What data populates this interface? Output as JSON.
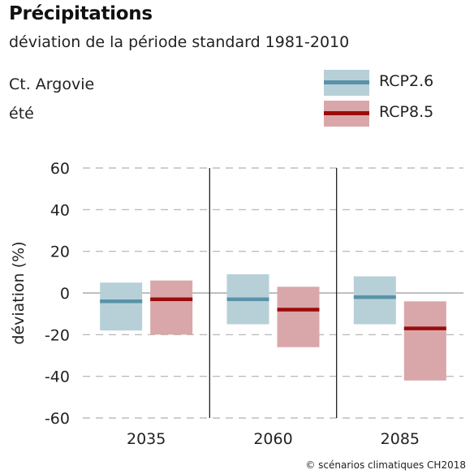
{
  "header": {
    "title": "Précipitations",
    "subtitle": "déviation de la période standard 1981-2010",
    "region": "Ct. Argovie",
    "season": "été"
  },
  "legend": {
    "items": [
      {
        "label": "RCP2.6"
      },
      {
        "label": "RCP8.5"
      }
    ]
  },
  "colors": {
    "rcp26_band": "#b7d0d8",
    "rcp26_line": "#5a93a8",
    "rcp85_band": "#d9a7a9",
    "rcp85_line": "#9b0b0b",
    "grid": "#b0b0b0",
    "divider": "#222222",
    "zero": "#9a9a9a"
  },
  "chart_data": {
    "type": "bar",
    "title": "Précipitations",
    "subtitle": "déviation de la période standard 1981-2010",
    "ylabel": "déviation (%)",
    "xlabel": "",
    "categories": [
      "2035",
      "2060",
      "2085"
    ],
    "ylim": [
      -60,
      60
    ],
    "yticks": [
      60,
      40,
      20,
      0,
      -20,
      -40,
      -60
    ],
    "grid": true,
    "legend_position": "top-right",
    "series": [
      {
        "name": "RCP2.6",
        "median": [
          -4,
          -3,
          -2
        ],
        "low": [
          -18,
          -15,
          -15
        ],
        "high": [
          5,
          9,
          8
        ]
      },
      {
        "name": "RCP8.5",
        "median": [
          -3,
          -8,
          -17
        ],
        "low": [
          -20,
          -26,
          -42
        ],
        "high": [
          6,
          3,
          -4
        ]
      }
    ]
  },
  "footer": {
    "copyright": "© scénarios climatiques CH2018"
  }
}
